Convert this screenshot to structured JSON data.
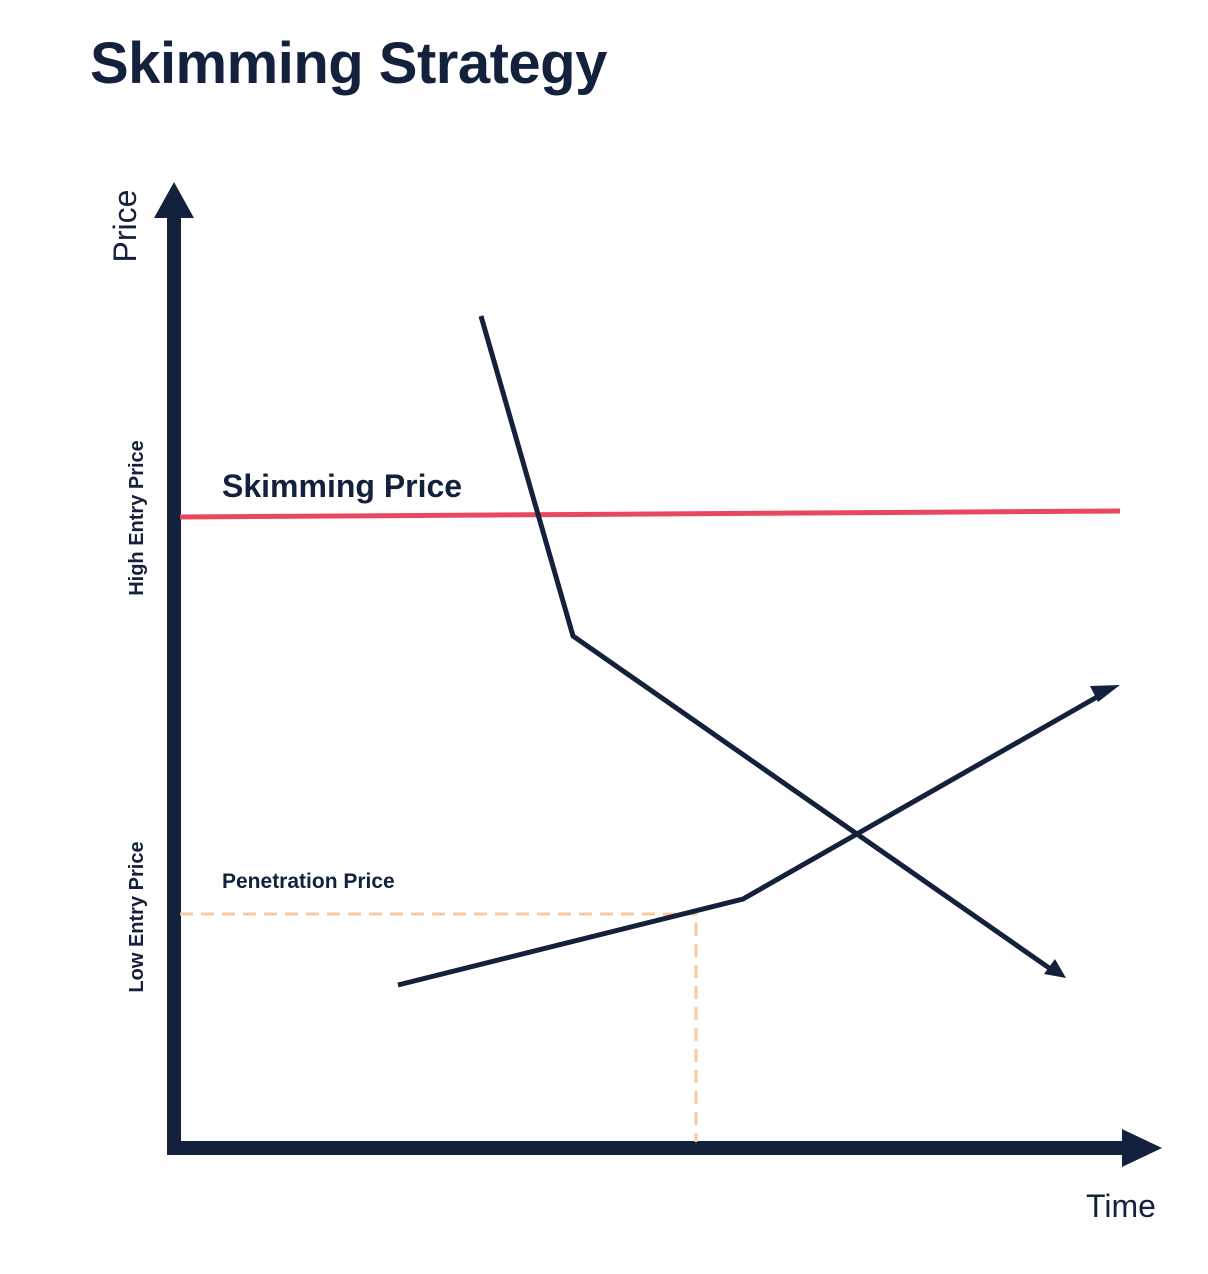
{
  "title": "Skimming Strategy",
  "axes": {
    "y_label": "Price",
    "x_label": "Time"
  },
  "side_labels": {
    "high": "High Entry Price",
    "low": "Low Entry Price"
  },
  "annotations": {
    "skimming": "Skimming Price",
    "penetration": "Penetration Price"
  },
  "colors": {
    "ink": "#14213d",
    "skimming_line": "#e8485f",
    "penetration_guide": "#f8c9a0"
  }
}
